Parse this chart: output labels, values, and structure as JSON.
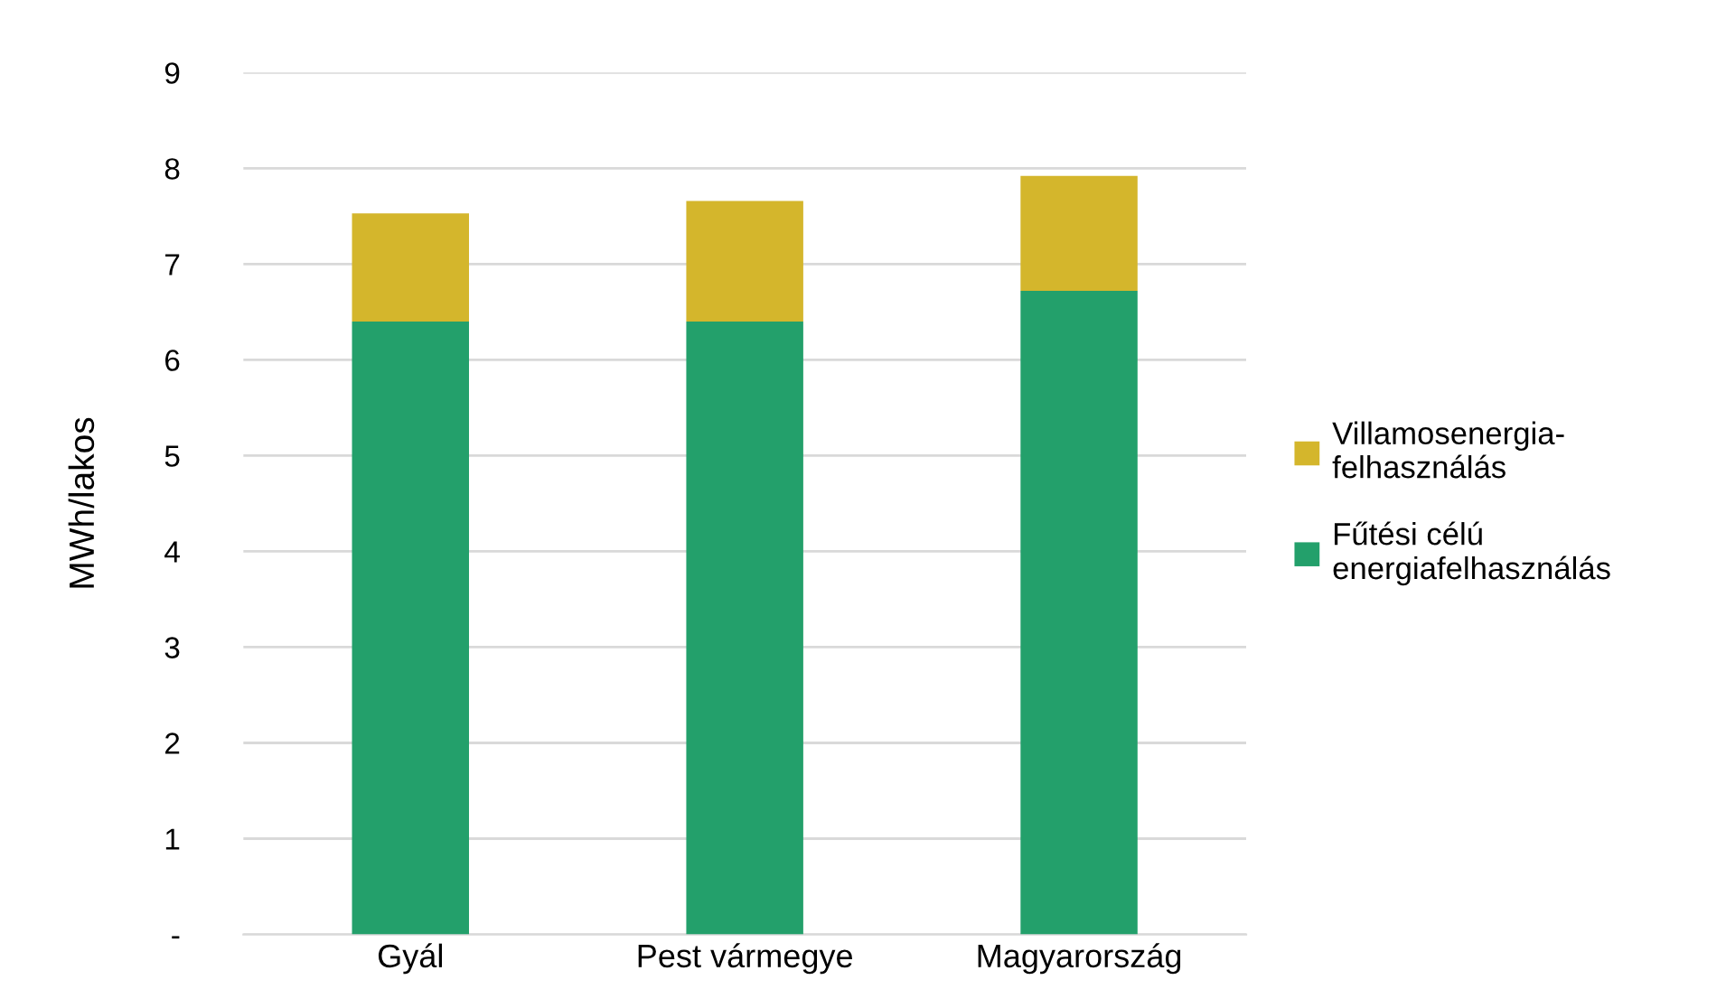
{
  "chart_data": {
    "type": "bar",
    "stacked": true,
    "categories": [
      "Gyál",
      "Pest vármegye",
      "Magyarország"
    ],
    "ylabel": "MWh/lakos",
    "series": [
      {
        "name": "Fűtési célú\nenergiafelhasználás",
        "color": "#23a06b",
        "values": [
          6.4,
          6.4,
          6.72
        ]
      },
      {
        "name": "Villamosenergia-\nfelhasználás",
        "color": "#d4b62c",
        "values": [
          1.13,
          1.26,
          1.2
        ]
      }
    ],
    "ylim": [
      0,
      9
    ],
    "yticks": [
      {
        "value": 0,
        "label": "-"
      },
      1,
      2,
      3,
      4,
      5,
      6,
      7,
      8,
      9
    ],
    "grid": "y",
    "legend": "right"
  }
}
